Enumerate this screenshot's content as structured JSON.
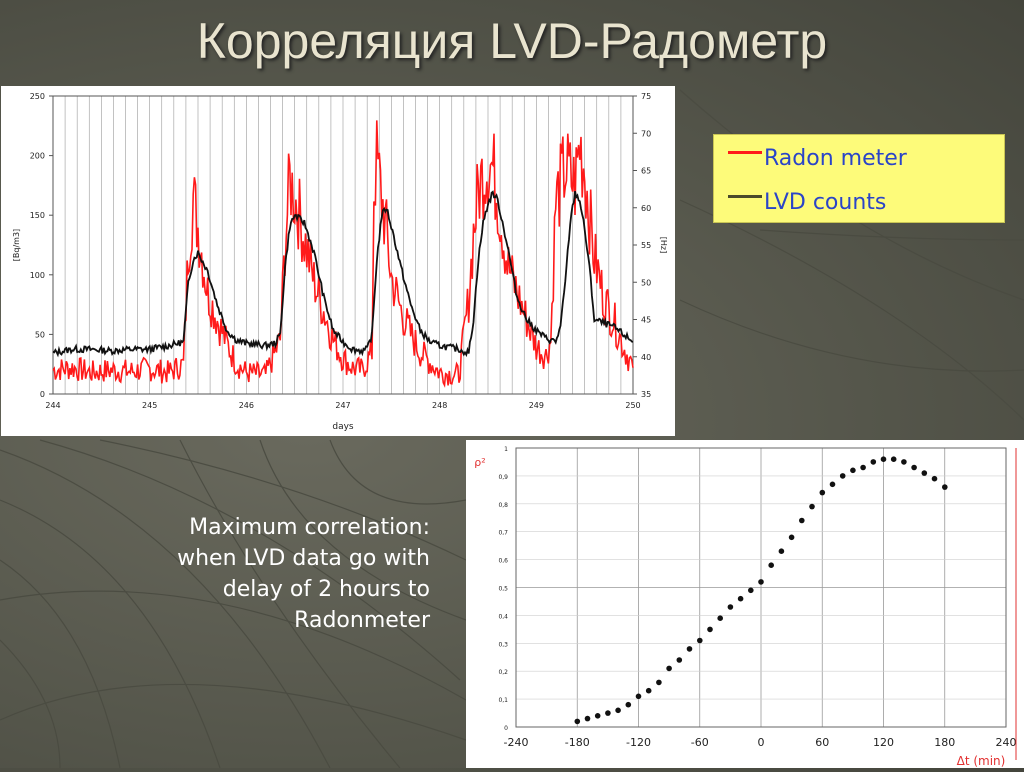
{
  "slide": {
    "title": "Корреляция LVD-Радометр"
  },
  "legend": {
    "items": [
      {
        "label": "Radon meter",
        "color": "#ff1a1a"
      },
      {
        "label": "LVD counts",
        "color": "#4a4a2a"
      }
    ]
  },
  "caption": {
    "lines": [
      "Maximum correlation:",
      "when LVD data go with",
      "delay of 2 hours to",
      "Radonmeter"
    ]
  },
  "colors": {
    "background": "#55564b",
    "title": "#e9e4cf",
    "radon": "#ff1a1a",
    "lvd": "#111111",
    "legend_bg": "#fdfb7a",
    "legend_text": "#2a44c8",
    "axis_red": "#e23030"
  },
  "chart_data": [
    {
      "type": "line",
      "xlabel": "days",
      "ylabel": "[Bq/m3]",
      "y2label": "[Hz]",
      "xlim": [
        244,
        250
      ],
      "ylim": [
        0,
        250
      ],
      "y2lim": [
        35,
        75
      ],
      "x_ticks": [
        "244",
        "245",
        "246",
        "247",
        "248",
        "249",
        "250"
      ],
      "y_ticks": [
        "0",
        "50",
        "100",
        "150",
        "200",
        "250"
      ],
      "y2_ticks": [
        "35",
        "40",
        "45",
        "50",
        "55",
        "60",
        "65",
        "70",
        "75"
      ],
      "grid": true,
      "series": [
        {
          "name": "Radon meter",
          "color": "#ff1a1a",
          "x": [
            244.0,
            244.2,
            244.4,
            244.6,
            244.8,
            245.0,
            245.2,
            245.35,
            245.4,
            245.45,
            245.5,
            245.6,
            245.7,
            245.8,
            245.9,
            246.0,
            246.2,
            246.35,
            246.4,
            246.45,
            246.5,
            246.55,
            246.6,
            246.7,
            246.8,
            246.9,
            247.0,
            247.1,
            247.2,
            247.3,
            247.32,
            247.35,
            247.4,
            247.45,
            247.5,
            247.6,
            247.7,
            247.8,
            248.0,
            248.2,
            248.3,
            248.35,
            248.4,
            248.45,
            248.5,
            248.55,
            248.6,
            248.7,
            248.8,
            248.9,
            249.0,
            249.1,
            249.15,
            249.2,
            249.3,
            249.4,
            249.45,
            249.5,
            249.55,
            249.6,
            249.7,
            249.8,
            249.9,
            250.0
          ],
          "y": [
            20,
            22,
            18,
            20,
            19,
            21,
            18,
            25,
            120,
            165,
            140,
            85,
            62,
            42,
            25,
            18,
            16,
            45,
            125,
            180,
            165,
            150,
            130,
            95,
            70,
            45,
            30,
            22,
            20,
            35,
            175,
            195,
            165,
            135,
            98,
            70,
            50,
            35,
            18,
            16,
            80,
            135,
            170,
            185,
            195,
            190,
            165,
            110,
            85,
            62,
            40,
            32,
            45,
            160,
            190,
            175,
            210,
            188,
            150,
            115,
            80,
            62,
            40,
            22
          ]
        },
        {
          "name": "LVD counts",
          "color": "#111111",
          "x": [
            244.0,
            244.2,
            244.4,
            244.6,
            244.8,
            245.0,
            245.2,
            245.35,
            245.4,
            245.45,
            245.5,
            245.6,
            245.7,
            245.8,
            245.9,
            246.0,
            246.2,
            246.3,
            246.35,
            246.4,
            246.45,
            246.5,
            246.55,
            246.6,
            246.7,
            246.8,
            246.9,
            247.0,
            247.1,
            247.2,
            247.25,
            247.3,
            247.35,
            247.4,
            247.45,
            247.5,
            247.6,
            247.7,
            247.8,
            247.9,
            248.0,
            248.2,
            248.3,
            248.35,
            248.4,
            248.45,
            248.5,
            248.55,
            248.6,
            248.7,
            248.8,
            248.9,
            249.0,
            249.1,
            249.2,
            249.25,
            249.3,
            249.35,
            249.4,
            249.45,
            249.5,
            249.55,
            249.6,
            249.7,
            249.8,
            249.9,
            250.0
          ],
          "y": [
            40.5,
            41.0,
            41.0,
            40.8,
            41.0,
            41.0,
            41.5,
            42.0,
            50.0,
            53.0,
            54.0,
            51.5,
            47.0,
            43.5,
            42.2,
            41.8,
            41.5,
            41.8,
            43.0,
            52.0,
            57.5,
            59.0,
            58.5,
            58.0,
            54.0,
            48.0,
            43.5,
            42.0,
            41.0,
            40.8,
            41.0,
            43.0,
            53.0,
            59.0,
            60.0,
            57.5,
            52.0,
            47.0,
            43.5,
            42.0,
            41.5,
            41.0,
            40.5,
            45.0,
            53.0,
            58.0,
            60.5,
            62.0,
            61.0,
            55.0,
            48.0,
            45.0,
            43.5,
            42.5,
            42.0,
            44.0,
            50.0,
            58.0,
            62.0,
            61.0,
            57.0,
            52.0,
            45.0,
            44.5,
            44.0,
            43.0,
            42.0
          ]
        }
      ]
    },
    {
      "type": "scatter",
      "xlabel": "Δt (min)",
      "ylabel": "ρ²",
      "xlim": [
        -240,
        240
      ],
      "ylim": [
        0,
        1
      ],
      "x_ticks": [
        "-240",
        "-180",
        "-120",
        "-60",
        "0",
        "60",
        "120",
        "180",
        "240"
      ],
      "y_ticks": [
        "0",
        "0,1",
        "0,2",
        "0,3",
        "0,4",
        "0,5",
        "0,6",
        "0,7",
        "0,8",
        "0,9",
        "1"
      ],
      "grid": true,
      "series": [
        {
          "color": "#111111",
          "x": [
            -180,
            -170,
            -160,
            -150,
            -140,
            -130,
            -120,
            -110,
            -100,
            -90,
            -80,
            -70,
            -60,
            -50,
            -40,
            -30,
            -20,
            -10,
            0,
            10,
            20,
            30,
            40,
            50,
            60,
            70,
            80,
            90,
            100,
            110,
            120,
            130,
            140,
            150,
            160,
            170,
            180
          ],
          "y": [
            0.02,
            0.03,
            0.04,
            0.05,
            0.06,
            0.08,
            0.11,
            0.13,
            0.16,
            0.21,
            0.24,
            0.28,
            0.31,
            0.35,
            0.39,
            0.43,
            0.46,
            0.49,
            0.52,
            0.58,
            0.63,
            0.68,
            0.74,
            0.79,
            0.84,
            0.87,
            0.9,
            0.92,
            0.93,
            0.95,
            0.96,
            0.96,
            0.95,
            0.93,
            0.91,
            0.89,
            0.86
          ]
        }
      ]
    }
  ]
}
